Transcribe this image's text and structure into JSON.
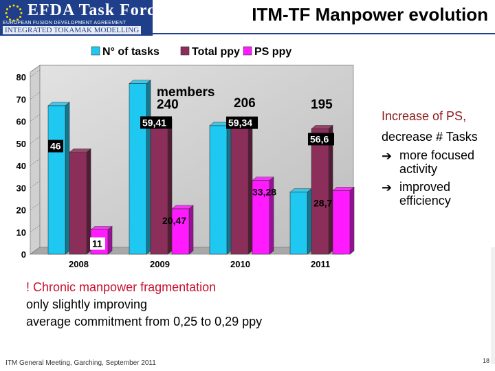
{
  "logo": {
    "main": "EFDA Task Force",
    "sub1": "EUROPEAN FUSION DEVELOPMENT AGREEMENT",
    "sub2": "INTEGRATED TOKAMAK MODELLING"
  },
  "slide_title": "ITM-TF Manpower evolution",
  "side": {
    "line1": "Increase of PS,",
    "line2": "decrease # Tasks",
    "bullets": [
      "more focused activity",
      "improved efficiency"
    ]
  },
  "note": {
    "line1": "! Chronic manpower fragmentation",
    "line2": "only slightly improving",
    "line3": "average commitment from 0,25 to 0,29 ppy"
  },
  "footer": "ITM General Meeting, Garching, September 2011",
  "page_number": "18",
  "colors": {
    "tasks": "#1ec8f0",
    "total": "#8b2e5a",
    "ps": "#ff1aff",
    "logo_bg": "#1f3f8a"
  },
  "chart_data": {
    "type": "bar",
    "categories": [
      "2008",
      "2009",
      "2010",
      "2011"
    ],
    "series": [
      {
        "name": "N° of tasks",
        "values": [
          67,
          77,
          58,
          28
        ]
      },
      {
        "name": "Total ppy",
        "values": [
          46,
          59.41,
          59.34,
          56.6
        ]
      },
      {
        "name": "PS ppy",
        "values": [
          11,
          20.47,
          33.28,
          28.7
        ]
      }
    ],
    "data_labels": {
      "Total ppy": [
        "46",
        "59,41",
        "59,34",
        "56,6"
      ],
      "PS ppy": [
        "11",
        "20,47",
        "33,28",
        "28,7"
      ]
    },
    "annotations": [
      {
        "text": "members",
        "category": "2009"
      },
      {
        "text": "240",
        "category": "2009"
      },
      {
        "text": "206",
        "category": "2010"
      },
      {
        "text": "195",
        "category": "2011"
      }
    ],
    "ylim": [
      0,
      80
    ],
    "yticks": [
      0,
      10,
      20,
      30,
      40,
      50,
      60,
      70,
      80
    ],
    "legend": "top",
    "grid": false
  }
}
